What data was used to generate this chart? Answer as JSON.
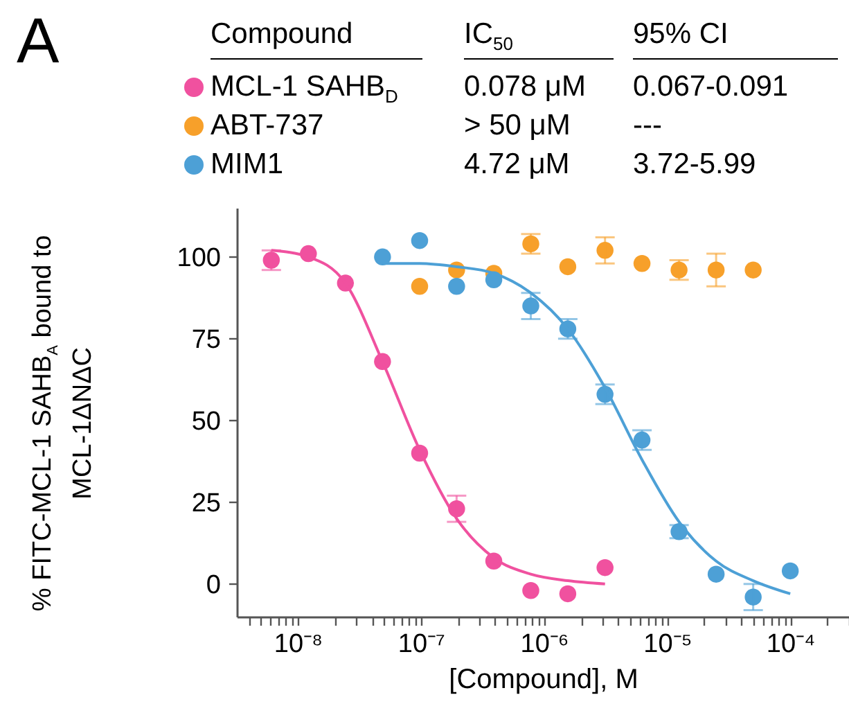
{
  "chart_data": {
    "type": "scatter",
    "title": "A",
    "xlabel": "[Compound], M",
    "ylabel": "% FITC-MCL-1 SAHB$_{A}$ bound to MCL-1ΔNΔC",
    "annotations": [
      "Compound",
      "IC$_{50}$",
      "95% CI",
      "0.078 μM",
      "0.067-0.091",
      "> 50 μM",
      "---",
      "4.72 μM",
      "3.72-5.99"
    ],
    "log": "x",
    "grid": false,
    "legend": "top",
    "xlim": [
      3.2e-09,
      0.0003
    ],
    "ylim": [
      -10,
      115
    ],
    "yticks": [
      0,
      25,
      50,
      75,
      100
    ],
    "xticks": [
      {
        "value": 4e-09,
        "label": null
      },
      {
        "value": 5e-09,
        "label": null
      },
      {
        "value": 6e-09,
        "label": null
      },
      {
        "value": 7e-09,
        "label": null
      },
      {
        "value": 8e-09,
        "label": null
      },
      {
        "value": 9e-09,
        "label": null
      },
      {
        "value": 1e-08,
        "label": "10⁻⁸"
      },
      {
        "value": 2e-08,
        "label": null
      },
      {
        "value": 3e-08,
        "label": null
      },
      {
        "value": 4e-08,
        "label": null
      },
      {
        "value": 5e-08,
        "label": null
      },
      {
        "value": 6e-08,
        "label": null
      },
      {
        "value": 7e-08,
        "label": null
      },
      {
        "value": 8e-08,
        "label": null
      },
      {
        "value": 9e-08,
        "label": null
      },
      {
        "value": 1e-07,
        "label": "10⁻⁷"
      },
      {
        "value": 2e-07,
        "label": null
      },
      {
        "value": 3e-07,
        "label": null
      },
      {
        "value": 4e-07,
        "label": null
      },
      {
        "value": 5e-07,
        "label": null
      },
      {
        "value": 6e-07,
        "label": null
      },
      {
        "value": 7e-07,
        "label": null
      },
      {
        "value": 8e-07,
        "label": null
      },
      {
        "value": 9e-07,
        "label": null
      },
      {
        "value": 1e-06,
        "label": "10⁻⁶"
      },
      {
        "value": 2e-06,
        "label": null
      },
      {
        "value": 3e-06,
        "label": null
      },
      {
        "value": 4e-06,
        "label": null
      },
      {
        "value": 5e-06,
        "label": null
      },
      {
        "value": 6e-06,
        "label": null
      },
      {
        "value": 7e-06,
        "label": null
      },
      {
        "value": 8e-06,
        "label": null
      },
      {
        "value": 9e-06,
        "label": null
      },
      {
        "value": 1e-05,
        "label": "10⁻⁵"
      },
      {
        "value": 2e-05,
        "label": null
      },
      {
        "value": 3e-05,
        "label": null
      },
      {
        "value": 4e-05,
        "label": null
      },
      {
        "value": 5e-05,
        "label": null
      },
      {
        "value": 6e-05,
        "label": null
      },
      {
        "value": 7e-05,
        "label": null
      },
      {
        "value": 8e-05,
        "label": null
      },
      {
        "value": 9e-05,
        "label": null
      },
      {
        "value": 0.0001,
        "label": "10⁻⁴"
      },
      {
        "value": 0.0002,
        "label": null
      },
      {
        "value": 0.0003,
        "label": null
      }
    ],
    "series": [
      {
        "name": "MCL-1 SAHB$_{D}$",
        "type": "scatter",
        "marker": "circle",
        "color": "#f0519f",
        "x": [
          6.1e-09,
          1.22e-08,
          2.44e-08,
          4.88e-08,
          9.77e-08,
          1.95e-07,
          3.91e-07,
          7.81e-07,
          1.56e-06,
          3.13e-06
        ],
        "values": [
          99,
          101,
          92,
          68,
          40,
          23,
          7,
          -2,
          -3,
          5
        ],
        "errors": [
          3,
          null,
          null,
          null,
          null,
          4,
          null,
          null,
          null,
          null
        ]
      },
      {
        "name": "ABT-737",
        "type": "scatter",
        "marker": "circle",
        "color": "#f7a02a",
        "x": [
          9.77e-08,
          1.95e-07,
          3.91e-07,
          7.81e-07,
          1.56e-06,
          3.13e-06,
          6.25e-06,
          1.25e-05,
          2.5e-05,
          5e-05
        ],
        "values": [
          91,
          96,
          95,
          104,
          97,
          102,
          98,
          96,
          96,
          96
        ],
        "errors": [
          null,
          null,
          null,
          3,
          null,
          4,
          null,
          3,
          5,
          null
        ]
      },
      {
        "name": "MIM1",
        "type": "scatter",
        "marker": "circle",
        "color": "#4da0d6",
        "x": [
          4.88e-08,
          9.77e-08,
          1.95e-07,
          3.91e-07,
          7.81e-07,
          1.56e-06,
          3.13e-06,
          6.25e-06,
          1.25e-05,
          2.5e-05,
          5e-05,
          0.0001
        ],
        "values": [
          100,
          105,
          91,
          93,
          85,
          78,
          58,
          44,
          16,
          3,
          -4,
          4
        ],
        "errors": [
          null,
          null,
          null,
          null,
          4,
          3,
          3,
          3,
          2,
          null,
          4,
          null
        ]
      },
      {
        "type": "line",
        "color": "#f0519f",
        "x": [
          6.1e-09,
          1.22e-08,
          2.44e-08,
          4.88e-08,
          9.77e-08,
          1.95e-07,
          3.91e-07,
          7.81e-07,
          1.56e-06,
          3.13e-06
        ],
        "values": [
          102,
          100,
          92,
          68,
          41,
          20,
          8,
          3,
          1,
          0
        ]
      },
      {
        "type": "line",
        "color": "#4da0d6",
        "x": [
          4.88e-08,
          9.77e-08,
          1.95e-07,
          3.91e-07,
          7.81e-07,
          1.56e-06,
          3.13e-06,
          6.25e-06,
          1.25e-05,
          2.5e-05,
          5e-05,
          0.0001
        ],
        "values": [
          98,
          98,
          97,
          95,
          89,
          78,
          60,
          38,
          19,
          7,
          1,
          -3
        ]
      }
    ]
  }
}
